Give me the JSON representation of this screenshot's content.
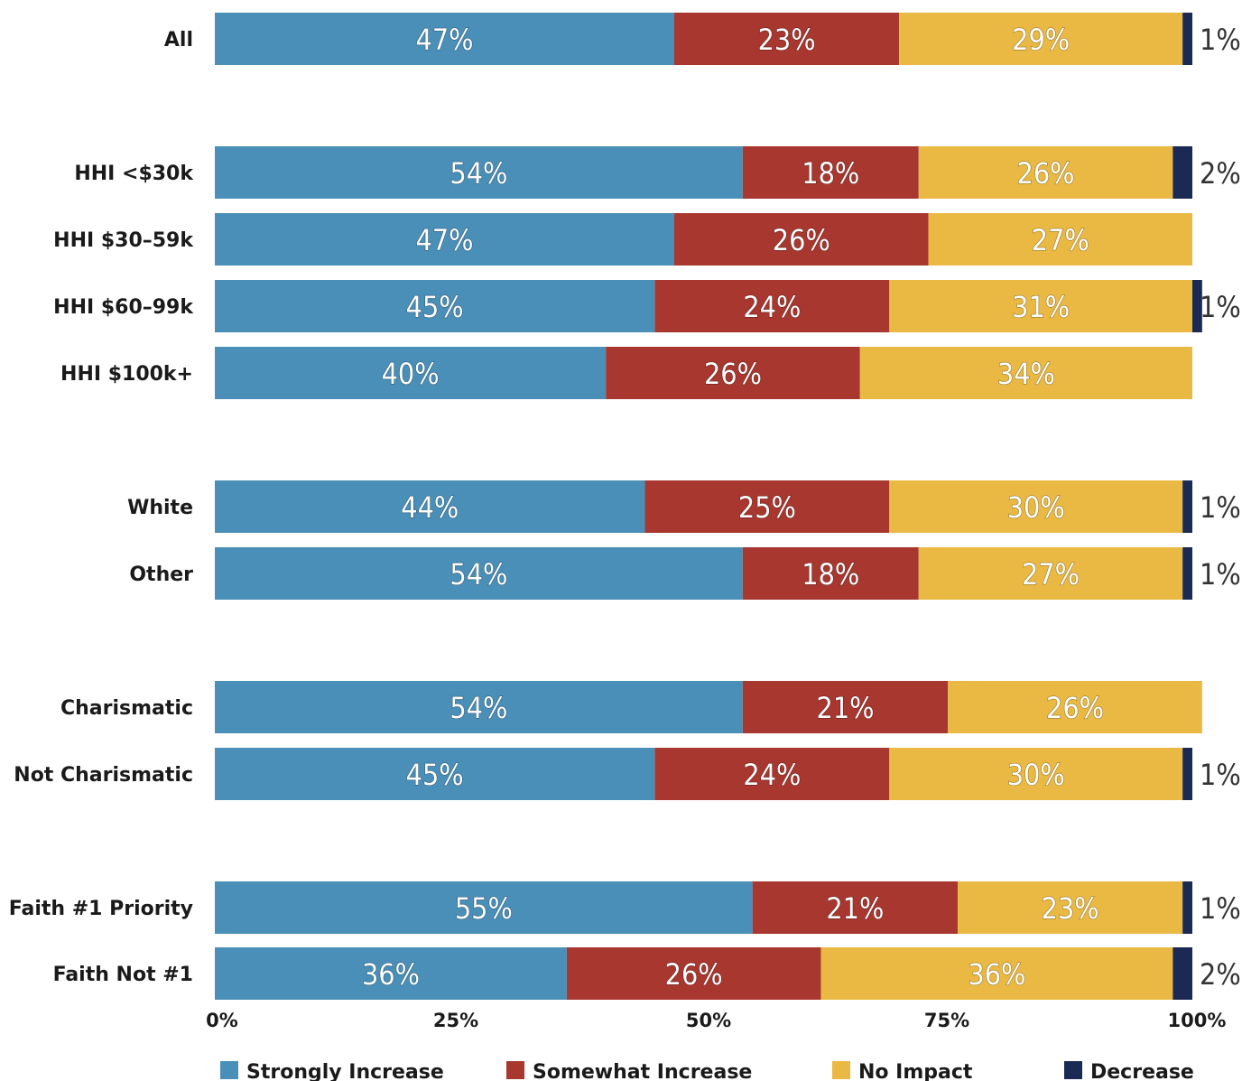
{
  "chart_data": {
    "type": "bar",
    "orientation": "horizontal",
    "stacked": true,
    "title": "",
    "xlabel": "",
    "ylabel": "",
    "xlim": [
      0,
      100
    ],
    "x_ticks": [
      "0%",
      "25%",
      "50%",
      "75%",
      "100%"
    ],
    "legend_position": "bottom",
    "grid": false,
    "groups": [
      [
        "All"
      ],
      [
        "HHI <$30k",
        "HHI $30–59k",
        "HHI $60–99k",
        "HHI $100k+"
      ],
      [
        "White",
        "Other"
      ],
      [
        "Charismatic",
        "Not Charismatic"
      ],
      [
        "Faith #1 Priority",
        "Faith Not #1"
      ]
    ],
    "categories": [
      "All",
      "HHI <$30k",
      "HHI $30–59k",
      "HHI $60–99k",
      "HHI $100k+",
      "White",
      "Other",
      "Charismatic",
      "Not Charismatic",
      "Faith #1 Priority",
      "Faith Not #1"
    ],
    "series": [
      {
        "name": "Strongly Increase",
        "color": "#4a8fb8",
        "values": [
          47,
          54,
          47,
          45,
          40,
          44,
          54,
          54,
          45,
          55,
          36
        ],
        "labels": [
          "47%",
          "54%",
          "47%",
          "45%",
          "40%",
          "44%",
          "54%",
          "54%",
          "45%",
          "55%",
          "36%"
        ]
      },
      {
        "name": "Somewhat Increase",
        "color": "#a8372f",
        "values": [
          23,
          18,
          26,
          24,
          26,
          25,
          18,
          21,
          24,
          21,
          26
        ],
        "labels": [
          "23%",
          "18%",
          "26%",
          "24%",
          "26%",
          "25%",
          "18%",
          "21%",
          "24%",
          "21%",
          "26%"
        ]
      },
      {
        "name": "No Impact",
        "color": "#e9b944",
        "values": [
          29,
          26,
          27,
          31,
          34,
          30,
          27,
          26,
          30,
          23,
          36
        ],
        "labels": [
          "29%",
          "26%",
          "27%",
          "31%",
          "34%",
          "30%",
          "27%",
          "26%",
          "30%",
          "23%",
          "36%"
        ]
      },
      {
        "name": "Decrease",
        "color": "#1b2a55",
        "values": [
          1,
          2,
          0,
          1,
          0,
          1,
          1,
          0,
          1,
          1,
          2
        ],
        "labels": [
          "1%",
          "2%",
          "",
          "1%",
          "",
          "1%",
          "1%",
          "",
          "1%",
          "1%",
          "2%"
        ]
      }
    ]
  }
}
